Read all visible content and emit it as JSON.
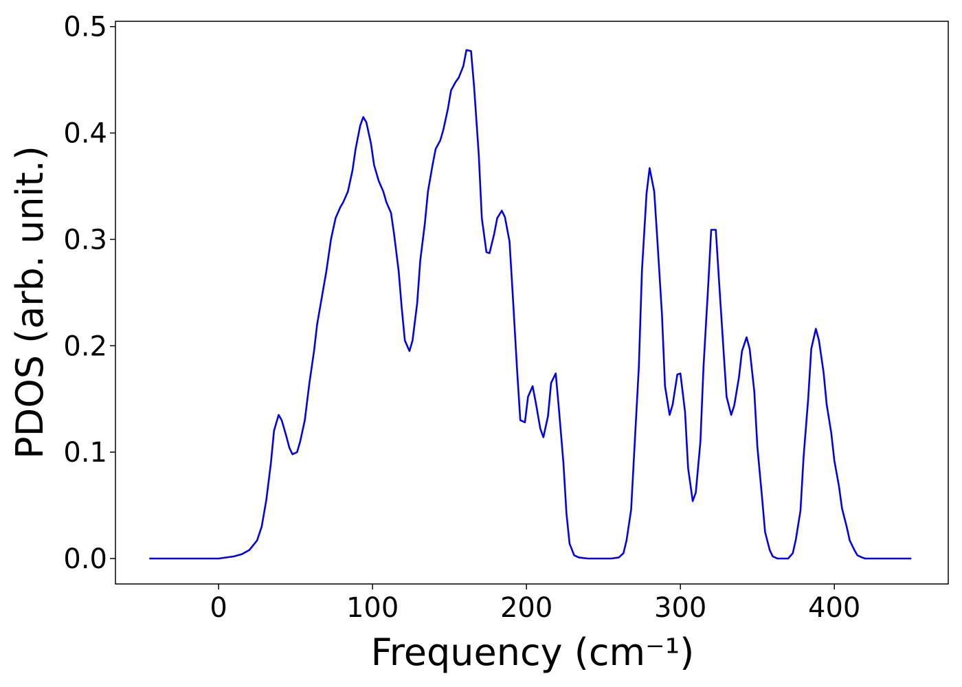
{
  "chart_data": {
    "type": "line",
    "xlabel": "Frequency (cm⁻¹)",
    "ylabel": "PDOS (arb. unit.)",
    "xlim": [
      -67,
      474
    ],
    "ylim": [
      -0.0239,
      0.505
    ],
    "xticks": [
      0,
      100,
      200,
      300,
      400
    ],
    "yticks": [
      {
        "value": 0,
        "label": "0.0"
      },
      0.1,
      0.2,
      0.3,
      0.4,
      0.5
    ],
    "grid": false,
    "series": [
      {
        "color": "#0000ee",
        "x": [
          -45,
          0,
          10,
          15,
          20,
          25,
          28,
          31,
          34,
          36,
          39,
          41,
          44,
          46,
          48,
          51,
          53,
          56,
          59,
          62,
          64,
          67,
          70,
          73,
          76,
          79,
          81,
          84,
          87,
          89,
          92,
          94,
          96,
          99,
          101,
          104,
          107,
          109,
          112,
          114,
          117,
          119,
          121,
          124,
          126,
          129,
          131,
          134,
          136,
          139,
          141,
          144,
          146,
          149,
          151,
          154,
          156,
          159,
          161,
          164,
          166,
          169,
          171,
          174,
          176,
          179,
          181,
          184,
          186,
          189,
          191,
          194,
          196,
          199,
          201,
          204,
          206,
          209,
          211,
          214,
          216,
          219,
          221,
          224,
          226,
          228,
          231,
          234,
          240,
          255,
          260,
          263,
          265,
          268,
          270,
          273,
          275,
          278,
          280,
          283,
          285,
          288,
          290,
          293,
          295,
          298,
          300,
          303,
          305,
          308,
          310,
          313,
          315,
          318,
          320,
          323,
          325,
          328,
          330,
          333,
          335,
          338,
          340,
          343,
          345,
          348,
          350,
          353,
          355,
          358,
          360,
          363,
          370,
          373,
          375,
          378,
          380,
          383,
          385,
          388,
          390,
          393,
          395,
          398,
          400,
          403,
          405,
          408,
          410,
          413,
          415,
          418,
          420,
          450
        ],
        "values": [
          0,
          0,
          0.002,
          0.004,
          0.008,
          0.017,
          0.03,
          0.055,
          0.09,
          0.12,
          0.135,
          0.13,
          0.115,
          0.104,
          0.098,
          0.1,
          0.11,
          0.13,
          0.165,
          0.195,
          0.22,
          0.245,
          0.27,
          0.3,
          0.32,
          0.33,
          0.335,
          0.345,
          0.365,
          0.385,
          0.407,
          0.415,
          0.41,
          0.39,
          0.37,
          0.355,
          0.345,
          0.335,
          0.325,
          0.305,
          0.27,
          0.235,
          0.205,
          0.195,
          0.205,
          0.24,
          0.28,
          0.315,
          0.345,
          0.37,
          0.385,
          0.393,
          0.403,
          0.423,
          0.44,
          0.448,
          0.452,
          0.463,
          0.478,
          0.477,
          0.443,
          0.38,
          0.32,
          0.288,
          0.287,
          0.305,
          0.32,
          0.327,
          0.321,
          0.298,
          0.25,
          0.175,
          0.13,
          0.128,
          0.152,
          0.162,
          0.147,
          0.122,
          0.114,
          0.134,
          0.165,
          0.174,
          0.142,
          0.09,
          0.042,
          0.014,
          0.003,
          0.001,
          0,
          0,
          0.001,
          0.005,
          0.017,
          0.046,
          0.1,
          0.18,
          0.27,
          0.343,
          0.367,
          0.345,
          0.3,
          0.23,
          0.162,
          0.135,
          0.145,
          0.173,
          0.174,
          0.138,
          0.085,
          0.054,
          0.062,
          0.11,
          0.18,
          0.255,
          0.309,
          0.309,
          0.263,
          0.196,
          0.152,
          0.135,
          0.144,
          0.17,
          0.195,
          0.208,
          0.197,
          0.157,
          0.105,
          0.058,
          0.025,
          0.008,
          0.002,
          0,
          0,
          0.005,
          0.018,
          0.045,
          0.095,
          0.15,
          0.197,
          0.216,
          0.205,
          0.175,
          0.145,
          0.118,
          0.092,
          0.068,
          0.047,
          0.03,
          0.017,
          0.008,
          0.003,
          0.001,
          0,
          0
        ]
      }
    ]
  }
}
